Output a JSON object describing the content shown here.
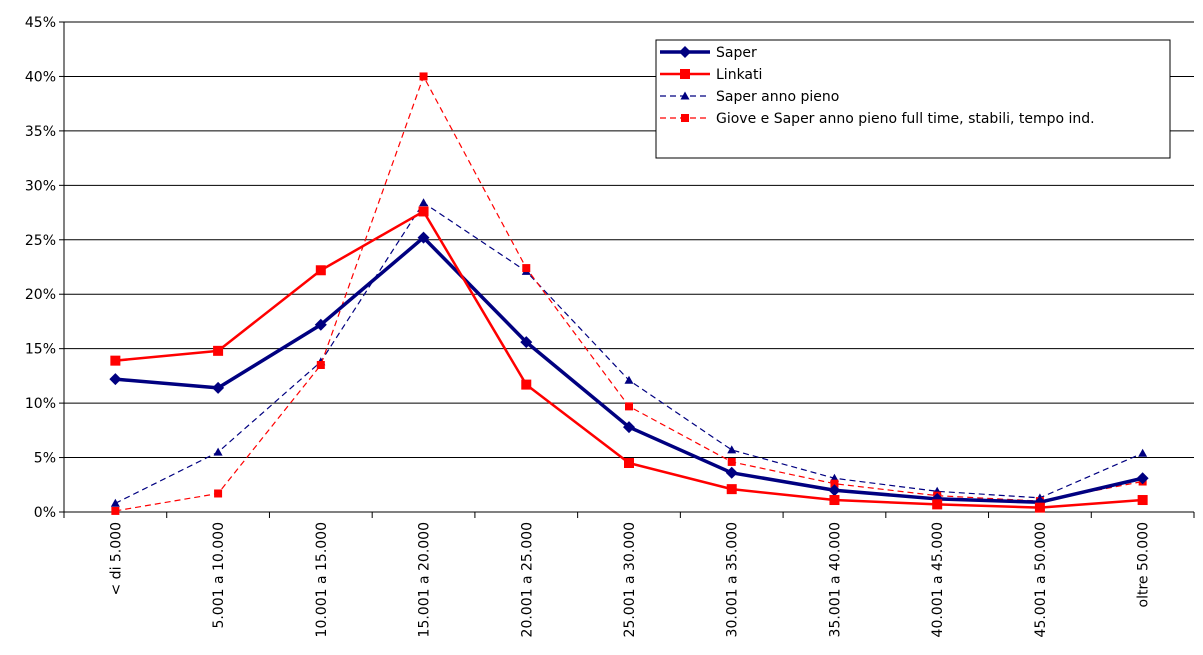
{
  "chart_data": {
    "type": "line",
    "categories": [
      "< di 5.000",
      "5.001 a 10.000",
      "10.001 a 15.000",
      "15.001 a 20.000",
      "20.001 a 25.000",
      "25.001 a 30.000",
      "30.001 a 35.000",
      "35.001 a 40.000",
      "40.001 a 45.000",
      "45.001 a 50.000",
      "oltre 50.000"
    ],
    "y_ticks": [
      "0%",
      "5%",
      "10%",
      "15%",
      "20%",
      "25%",
      "30%",
      "35%",
      "40%",
      "45%"
    ],
    "ylim": [
      0,
      45
    ],
    "y_unit": "%",
    "grid": "horizontal",
    "legend_position": "top-right",
    "series": [
      {
        "name": "Saper",
        "values": [
          12.2,
          11.4,
          17.2,
          25.2,
          15.6,
          7.8,
          3.6,
          2.0,
          1.2,
          0.9,
          3.1
        ],
        "color": "#000080",
        "style": "solid-bold",
        "marker": "diamond"
      },
      {
        "name": "Linkati",
        "values": [
          13.9,
          14.8,
          22.2,
          27.6,
          11.7,
          4.5,
          2.1,
          1.1,
          0.7,
          0.4,
          1.1
        ],
        "color": "#ff0000",
        "style": "solid",
        "marker": "square"
      },
      {
        "name": "Saper anno pieno",
        "values": [
          0.8,
          5.5,
          13.8,
          28.4,
          22.1,
          12.1,
          5.7,
          3.1,
          1.9,
          1.3,
          5.4
        ],
        "color": "#000080",
        "style": "dashed",
        "marker": "triangle"
      },
      {
        "name": "Giove e Saper anno pieno full time, stabili, tempo ind.",
        "values": [
          0.1,
          1.7,
          13.5,
          40.0,
          22.4,
          9.7,
          4.6,
          2.6,
          1.5,
          1.0,
          2.8
        ],
        "color": "#ff0000",
        "style": "dashed",
        "marker": "square-small"
      }
    ]
  }
}
